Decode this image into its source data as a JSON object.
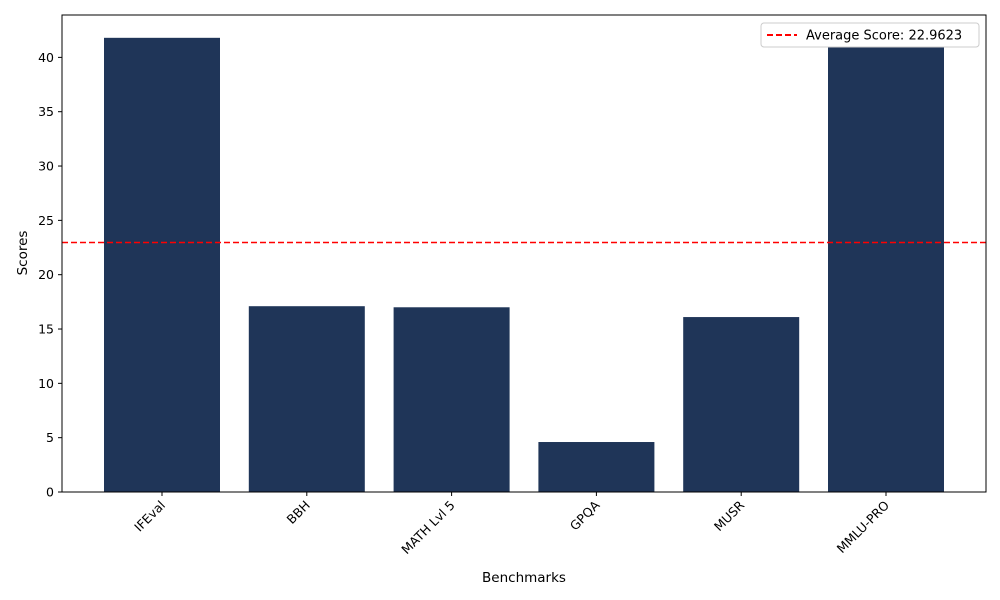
{
  "chart_data": {
    "type": "bar",
    "title": "",
    "xlabel": "Benchmarks",
    "ylabel": "Scores",
    "categories": [
      "IFEval",
      "BBH",
      "MATH Lvl 5",
      "GPQA",
      "MUSR",
      "MMLU-PRO"
    ],
    "values": [
      41.8,
      17.1,
      17.0,
      4.6,
      16.1,
      41.1
    ],
    "ylim": [
      0,
      43.9
    ],
    "yticks": [
      0,
      5,
      10,
      15,
      20,
      25,
      30,
      35,
      40
    ],
    "bar_color": "#1f3558",
    "grid": false,
    "reference_line": {
      "value": 22.9623,
      "label": "Average Score: 22.9623",
      "color": "#ff0000",
      "style": "dashed"
    },
    "legend_position": "top-right"
  }
}
